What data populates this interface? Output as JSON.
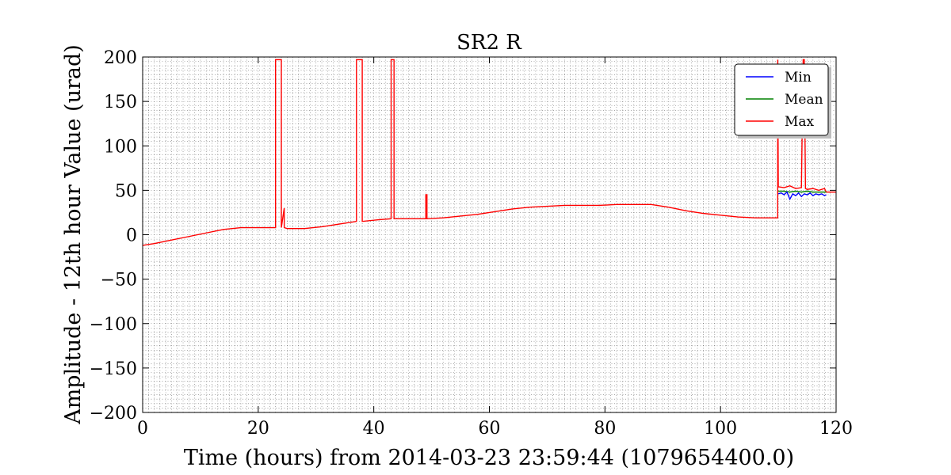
{
  "chart_data": {
    "type": "line",
    "title": "SR2 R",
    "xlabel": "Time (hours) from 2014-03-23 23:59:44 (1079654400.0)",
    "ylabel": "Amplitude - 12th hour Value (urad)",
    "xlim": [
      0,
      120
    ],
    "ylim": [
      -200,
      200
    ],
    "xticks": [
      0,
      20,
      40,
      60,
      80,
      100,
      120
    ],
    "yticks": [
      -200,
      -150,
      -100,
      -50,
      0,
      50,
      100,
      150,
      200
    ],
    "xtick_labels": [
      "0",
      "20",
      "40",
      "60",
      "80",
      100,
      120
    ],
    "ytick_labels": [
      "−200",
      "−150",
      "−100",
      "−50",
      "0",
      "50",
      "100",
      "150",
      "200"
    ],
    "grid": true,
    "legend_position": "top-right",
    "series": [
      {
        "name": "Min",
        "color": "#0000ff",
        "x": [
          110,
          110.5,
          111,
          111.5,
          112,
          112.5,
          113,
          113.5,
          114,
          114.5,
          115,
          115.5,
          116,
          116.5,
          117,
          117.5,
          118,
          118.3
        ],
        "y": [
          46,
          47,
          45,
          48,
          40,
          46,
          44,
          47,
          43,
          46,
          45,
          47,
          44,
          46,
          45,
          46,
          44,
          45
        ]
      },
      {
        "name": "Mean",
        "color": "#008000",
        "x": [
          110,
          111,
          112,
          113,
          114,
          115,
          116,
          117,
          118,
          118.3
        ],
        "y": [
          49,
          49,
          48,
          49,
          48,
          49,
          48,
          48,
          48,
          48
        ]
      },
      {
        "name": "Max",
        "color": "#ff0000",
        "x": [
          0,
          2,
          5,
          8,
          11,
          14,
          17,
          20,
          23,
          23,
          24,
          24,
          24.5,
          24.5,
          25,
          28,
          31,
          34,
          37,
          37,
          38,
          38,
          41,
          43,
          43,
          43.5,
          43.5,
          46,
          49,
          49,
          49.2,
          49.2,
          52,
          55,
          58,
          61,
          64,
          67,
          70,
          73,
          76,
          79,
          82,
          85,
          88,
          91,
          94,
          97,
          100,
          103,
          106,
          109.9,
          109.9,
          110,
          111,
          112,
          113,
          114,
          114.3,
          114.5,
          114.7,
          115,
          116,
          117,
          118,
          118.3,
          120
        ],
        "y": [
          -12,
          -10,
          -6,
          -2,
          2,
          6,
          8,
          8,
          8,
          197,
          197,
          8,
          30,
          8,
          7,
          7,
          9,
          12,
          15,
          197,
          197,
          15,
          17,
          18,
          197,
          197,
          18,
          18,
          18,
          45,
          45,
          18,
          19,
          21,
          23,
          26,
          29,
          31,
          32,
          33,
          33,
          33,
          34,
          34,
          34,
          31,
          27,
          24,
          22,
          20,
          19,
          19,
          197,
          54,
          53,
          55,
          52,
          53,
          197,
          197,
          52,
          51,
          52,
          50,
          52,
          48,
          48
        ]
      }
    ]
  }
}
